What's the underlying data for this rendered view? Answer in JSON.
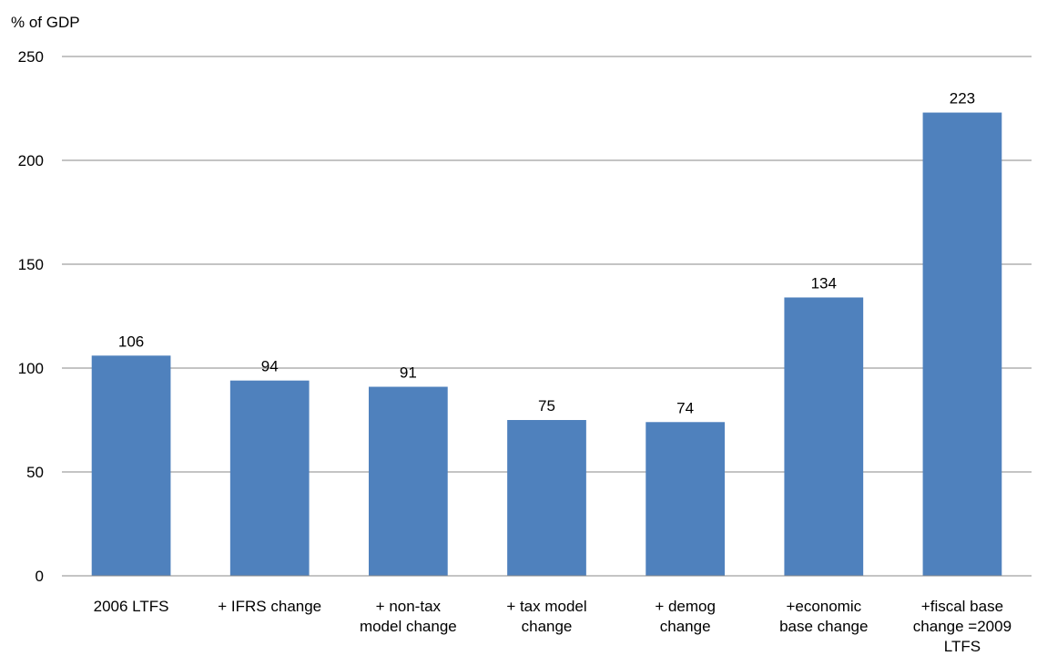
{
  "chart_data": {
    "type": "bar",
    "ylabel": "% of GDP",
    "xlabel": "",
    "title": "",
    "ylim": [
      0,
      250
    ],
    "yticks": [
      0,
      50,
      100,
      150,
      200,
      250
    ],
    "grid": true,
    "categories": [
      [
        "2006 LTFS"
      ],
      [
        "+ IFRS change"
      ],
      [
        "+ non-tax",
        "model change"
      ],
      [
        "+ tax model",
        "change"
      ],
      [
        "+ demog",
        "change"
      ],
      [
        "+economic",
        "base change"
      ],
      [
        "+fiscal base",
        "change =2009",
        "LTFS"
      ]
    ],
    "values": [
      106,
      94,
      91,
      75,
      74,
      134,
      223
    ],
    "data_labels": [
      "106",
      "94",
      "91",
      "75",
      "74",
      "134",
      "223"
    ],
    "colors": {
      "bar": "#4F81BD",
      "grid": "#888888",
      "axis": "#888888"
    }
  }
}
